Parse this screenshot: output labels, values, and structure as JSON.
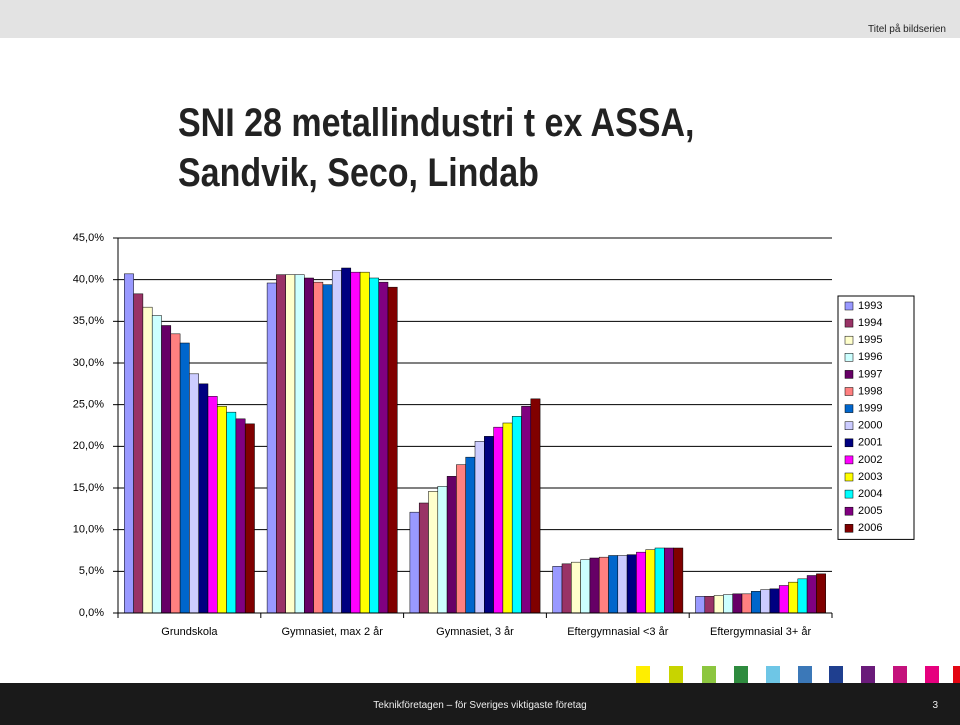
{
  "header": {
    "series_title": "Titel på bildserien"
  },
  "footer": {
    "text": "Teknikföretagen – för Sveriges viktigaste företag",
    "page_number": 3
  },
  "chart_data": {
    "type": "bar",
    "title": "SNI 28 metallindustri t ex ASSA, Sandvik, Seco, Lindab",
    "categories": [
      "Grundskola",
      "Gymnasiet, max 2 år",
      "Gymnasiet, 3 år",
      "Eftergymnasial <3 år",
      "Eftergymnasial 3+ år"
    ],
    "ylim": [
      0,
      45
    ],
    "yticks": [
      {
        "value": 0,
        "label": "0,0%"
      },
      {
        "value": 5,
        "label": "5,0%"
      },
      {
        "value": 10,
        "label": "10,0%"
      },
      {
        "value": 15,
        "label": "15,0%"
      },
      {
        "value": 20,
        "label": "20,0%"
      },
      {
        "value": 25,
        "label": "25,0%"
      },
      {
        "value": 30,
        "label": "30,0%"
      },
      {
        "value": 35,
        "label": "35,0%"
      },
      {
        "value": 40,
        "label": "40,0%"
      },
      {
        "value": 45,
        "label": "45,0%"
      }
    ],
    "grid": true,
    "legend": "right",
    "series": [
      {
        "name": "1993",
        "color": "#9999ff",
        "values": [
          40.7,
          39.6,
          12.1,
          5.6,
          2.0
        ]
      },
      {
        "name": "1994",
        "color": "#993366",
        "values": [
          38.3,
          40.6,
          13.2,
          5.9,
          2.0
        ]
      },
      {
        "name": "1995",
        "color": "#ffffcc",
        "values": [
          36.7,
          40.6,
          14.6,
          6.1,
          2.1
        ]
      },
      {
        "name": "1996",
        "color": "#ccffff",
        "values": [
          35.7,
          40.6,
          15.2,
          6.4,
          2.2
        ]
      },
      {
        "name": "1997",
        "color": "#660066",
        "values": [
          34.5,
          40.2,
          16.4,
          6.6,
          2.3
        ]
      },
      {
        "name": "1998",
        "color": "#ff8080",
        "values": [
          33.5,
          39.7,
          17.8,
          6.7,
          2.3
        ]
      },
      {
        "name": "1999",
        "color": "#0066cc",
        "values": [
          32.4,
          39.4,
          18.7,
          6.9,
          2.6
        ]
      },
      {
        "name": "2000",
        "color": "#ccccff",
        "values": [
          28.7,
          41.1,
          20.6,
          6.9,
          2.8
        ]
      },
      {
        "name": "2001",
        "color": "#000080",
        "values": [
          27.5,
          41.4,
          21.2,
          7.0,
          2.9
        ]
      },
      {
        "name": "2002",
        "color": "#ff00ff",
        "values": [
          26.0,
          40.9,
          22.3,
          7.3,
          3.3
        ]
      },
      {
        "name": "2003",
        "color": "#ffff00",
        "values": [
          24.8,
          40.9,
          22.8,
          7.6,
          3.7
        ]
      },
      {
        "name": "2004",
        "color": "#00ffff",
        "values": [
          24.1,
          40.2,
          23.6,
          7.8,
          4.1
        ]
      },
      {
        "name": "2005",
        "color": "#800080",
        "values": [
          23.3,
          39.7,
          24.8,
          7.8,
          4.5
        ]
      },
      {
        "name": "2006",
        "color": "#800000",
        "values": [
          22.7,
          39.1,
          25.7,
          7.8,
          4.7
        ]
      }
    ]
  }
}
